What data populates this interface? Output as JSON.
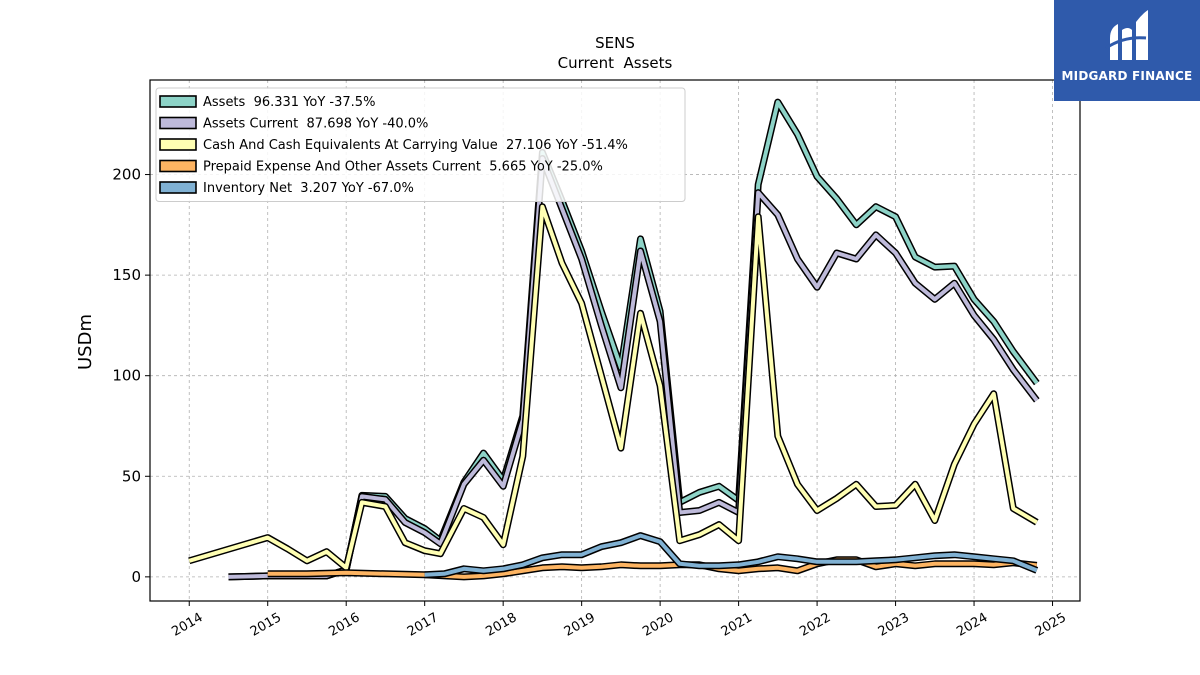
{
  "chart_data": {
    "type": "line",
    "title": "SENS",
    "subtitle": "Current  Assets",
    "xlabel": "",
    "ylabel": "USDm",
    "xlim": [
      2013.5,
      2025.35
    ],
    "ylim": [
      -12,
      247
    ],
    "x_ticks": [
      2014,
      2015,
      2016,
      2017,
      2018,
      2019,
      2020,
      2021,
      2022,
      2023,
      2024,
      2025
    ],
    "y_ticks": [
      0,
      50,
      100,
      150,
      200
    ],
    "grid": true,
    "legend_position": "top-left",
    "series": [
      {
        "name": "Assets  96.331 YoY -37.5%",
        "color": "#8dd3c7",
        "points": [
          [
            2014.5,
            0.0
          ],
          [
            2015.0,
            0.5
          ],
          [
            2015.5,
            0.5
          ],
          [
            2015.75,
            0.5
          ],
          [
            2016.0,
            3.5
          ],
          [
            2016.2,
            40.5
          ],
          [
            2016.5,
            40.0
          ],
          [
            2016.75,
            29.0
          ],
          [
            2017.0,
            24.0
          ],
          [
            2017.2,
            18.0
          ],
          [
            2017.5,
            47.0
          ],
          [
            2017.75,
            61.5
          ],
          [
            2018.0,
            48.0
          ],
          [
            2018.25,
            80.0
          ],
          [
            2018.5,
            211.0
          ],
          [
            2018.75,
            187.0
          ],
          [
            2019.0,
            162.0
          ],
          [
            2019.25,
            132.0
          ],
          [
            2019.5,
            104.0
          ],
          [
            2019.75,
            168.0
          ],
          [
            2020.0,
            132.0
          ],
          [
            2020.25,
            37.0
          ],
          [
            2020.5,
            42.0
          ],
          [
            2020.75,
            45.0
          ],
          [
            2021.0,
            38.0
          ],
          [
            2021.25,
            195.0
          ],
          [
            2021.5,
            236.0
          ],
          [
            2021.75,
            220.0
          ],
          [
            2022.0,
            199.0
          ],
          [
            2022.25,
            188.0
          ],
          [
            2022.5,
            175.0
          ],
          [
            2022.75,
            184.0
          ],
          [
            2023.0,
            179.0
          ],
          [
            2023.25,
            159.0
          ],
          [
            2023.5,
            154.0
          ],
          [
            2023.75,
            154.5
          ],
          [
            2024.0,
            138.0
          ],
          [
            2024.25,
            127.0
          ],
          [
            2024.5,
            112.0
          ],
          [
            2024.8,
            96.3
          ]
        ]
      },
      {
        "name": "Assets Current  87.698 YoY -40.0%",
        "color": "#bebada",
        "points": [
          [
            2014.5,
            0.0
          ],
          [
            2015.0,
            0.5
          ],
          [
            2015.5,
            0.5
          ],
          [
            2015.75,
            0.5
          ],
          [
            2016.0,
            3.5
          ],
          [
            2016.2,
            40.0
          ],
          [
            2016.5,
            38.5
          ],
          [
            2016.75,
            27.0
          ],
          [
            2017.0,
            22.0
          ],
          [
            2017.2,
            16.5
          ],
          [
            2017.5,
            46.0
          ],
          [
            2017.75,
            58.0
          ],
          [
            2018.0,
            45.0
          ],
          [
            2018.25,
            78.0
          ],
          [
            2018.5,
            208.0
          ],
          [
            2018.75,
            183.0
          ],
          [
            2019.0,
            158.0
          ],
          [
            2019.25,
            125.0
          ],
          [
            2019.5,
            94.0
          ],
          [
            2019.75,
            162.0
          ],
          [
            2020.0,
            127.0
          ],
          [
            2020.25,
            32.0
          ],
          [
            2020.5,
            33.0
          ],
          [
            2020.75,
            37.0
          ],
          [
            2021.0,
            32.0
          ],
          [
            2021.25,
            191.0
          ],
          [
            2021.5,
            180.0
          ],
          [
            2021.75,
            158.0
          ],
          [
            2022.0,
            144.0
          ],
          [
            2022.25,
            161.0
          ],
          [
            2022.5,
            158.0
          ],
          [
            2022.75,
            170.0
          ],
          [
            2023.0,
            161.0
          ],
          [
            2023.25,
            146.0
          ],
          [
            2023.5,
            138.0
          ],
          [
            2023.75,
            146.0
          ],
          [
            2024.0,
            130.0
          ],
          [
            2024.25,
            118.0
          ],
          [
            2024.5,
            103.0
          ],
          [
            2024.8,
            87.7
          ]
        ]
      },
      {
        "name": "Cash And Cash Equivalents At Carrying Value  27.106 YoY -51.4%",
        "color": "#ffffb3",
        "points": [
          [
            2014.0,
            8.0
          ],
          [
            2015.0,
            19.5
          ],
          [
            2015.25,
            14.0
          ],
          [
            2015.5,
            8.0
          ],
          [
            2015.75,
            12.5
          ],
          [
            2016.0,
            4.5
          ],
          [
            2016.2,
            37.0
          ],
          [
            2016.5,
            35.0
          ],
          [
            2016.75,
            17.0
          ],
          [
            2017.0,
            13.0
          ],
          [
            2017.2,
            11.5
          ],
          [
            2017.5,
            34.0
          ],
          [
            2017.75,
            29.5
          ],
          [
            2018.0,
            16.0
          ],
          [
            2018.25,
            60.0
          ],
          [
            2018.5,
            184.0
          ],
          [
            2018.75,
            156.0
          ],
          [
            2019.0,
            136.0
          ],
          [
            2019.25,
            100.0
          ],
          [
            2019.5,
            64.0
          ],
          [
            2019.75,
            131.0
          ],
          [
            2020.0,
            95.0
          ],
          [
            2020.25,
            18.0
          ],
          [
            2020.5,
            21.0
          ],
          [
            2020.75,
            26.0
          ],
          [
            2021.0,
            18.0
          ],
          [
            2021.25,
            179.0
          ],
          [
            2021.5,
            70.0
          ],
          [
            2021.75,
            46.0
          ],
          [
            2022.0,
            33.0
          ],
          [
            2022.25,
            39.0
          ],
          [
            2022.5,
            46.0
          ],
          [
            2022.75,
            35.0
          ],
          [
            2023.0,
            35.5
          ],
          [
            2023.25,
            46.0
          ],
          [
            2023.5,
            28.0
          ],
          [
            2023.75,
            56.0
          ],
          [
            2024.0,
            76.0
          ],
          [
            2024.25,
            91.0
          ],
          [
            2024.5,
            34.0
          ],
          [
            2024.8,
            27.1
          ]
        ]
      },
      {
        "name": "Prepaid Expense And Other Assets Current  5.665 YoY -25.0%",
        "color": "#fdb462",
        "points": [
          [
            2015.0,
            1.5
          ],
          [
            2015.5,
            1.5
          ],
          [
            2016.0,
            2.0
          ],
          [
            2016.5,
            1.5
          ],
          [
            2017.0,
            1.0
          ],
          [
            2017.5,
            0.0
          ],
          [
            2017.75,
            0.5
          ],
          [
            2018.0,
            1.5
          ],
          [
            2018.5,
            4.5
          ],
          [
            2018.75,
            5.0
          ],
          [
            2019.0,
            4.5
          ],
          [
            2019.25,
            5.0
          ],
          [
            2019.5,
            6.0
          ],
          [
            2019.75,
            5.5
          ],
          [
            2020.0,
            5.5
          ],
          [
            2020.25,
            6.0
          ],
          [
            2020.5,
            6.0
          ],
          [
            2020.75,
            4.0
          ],
          [
            2021.0,
            3.0
          ],
          [
            2021.25,
            4.0
          ],
          [
            2021.5,
            4.5
          ],
          [
            2021.75,
            3.0
          ],
          [
            2022.0,
            6.5
          ],
          [
            2022.25,
            8.5
          ],
          [
            2022.5,
            8.5
          ],
          [
            2022.75,
            5.0
          ],
          [
            2023.0,
            6.5
          ],
          [
            2023.25,
            5.5
          ],
          [
            2023.5,
            6.5
          ],
          [
            2023.75,
            6.5
          ],
          [
            2024.0,
            6.5
          ],
          [
            2024.25,
            6.0
          ],
          [
            2024.5,
            7.0
          ],
          [
            2024.8,
            5.7
          ]
        ]
      },
      {
        "name": "Inventory Net  3.207 YoY -67.0%",
        "color": "#80b1d3",
        "points": [
          [
            2017.0,
            1.0
          ],
          [
            2017.25,
            1.5
          ],
          [
            2017.5,
            4.0
          ],
          [
            2017.75,
            3.0
          ],
          [
            2018.0,
            4.0
          ],
          [
            2018.25,
            6.0
          ],
          [
            2018.5,
            9.5
          ],
          [
            2018.75,
            11.0
          ],
          [
            2019.0,
            11.0
          ],
          [
            2019.25,
            15.0
          ],
          [
            2019.5,
            17.0
          ],
          [
            2019.75,
            20.5
          ],
          [
            2020.0,
            17.5
          ],
          [
            2020.25,
            6.5
          ],
          [
            2020.5,
            5.5
          ],
          [
            2020.75,
            5.5
          ],
          [
            2021.0,
            6.0
          ],
          [
            2021.25,
            7.5
          ],
          [
            2021.5,
            10.0
          ],
          [
            2021.75,
            9.0
          ],
          [
            2022.0,
            7.5
          ],
          [
            2022.25,
            7.5
          ],
          [
            2022.5,
            7.5
          ],
          [
            2022.75,
            8.0
          ],
          [
            2023.0,
            8.5
          ],
          [
            2023.25,
            9.5
          ],
          [
            2023.5,
            10.5
          ],
          [
            2023.75,
            11.0
          ],
          [
            2024.0,
            10.0
          ],
          [
            2024.25,
            9.0
          ],
          [
            2024.5,
            8.0
          ],
          [
            2024.8,
            3.2
          ]
        ]
      }
    ]
  },
  "logo": {
    "text": "MIDGARD FINANCE",
    "background": "#2f5aab"
  }
}
